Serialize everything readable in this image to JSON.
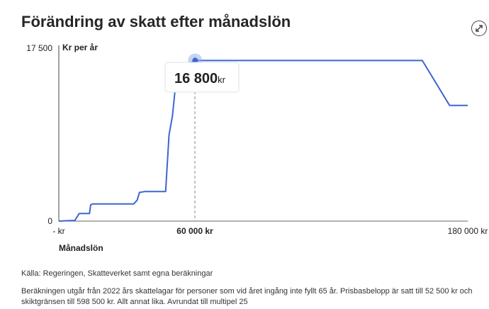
{
  "title": "Förändring av skatt efter månadslön",
  "expand_icon": "expand-arrows-icon",
  "tooltip": {
    "value": "16 800",
    "unit": "kr"
  },
  "source": "Källa: Regeringen, Skatteverket samt egna beräkningar",
  "note": "Beräkningen utgår från 2022 års skattelagar för personer som vid året ingång inte fyllt 65 år. Prisbasbelopp är satt till 52 500 kr och skiktgränsen till 598 500 kr. Allt annat lika. Avrundat till multipel 25",
  "colors": {
    "line": "#3c66d0",
    "highlight": "#8ea9ec"
  },
  "chart_data": {
    "type": "line",
    "ylabel": "Kr per år",
    "xlabel": "Månadslön",
    "ylim": [
      0,
      17500
    ],
    "xlim": [
      0,
      180000
    ],
    "y_tick_labels": [
      "0",
      "17 500"
    ],
    "x_tick_labels": [
      "- kr",
      "60 000 kr",
      "180 000 kr"
    ],
    "x_ticks": [
      0,
      60000,
      180000
    ],
    "y_ticks": [
      0,
      17500
    ],
    "highlight": {
      "x": 60000,
      "y": 16800
    },
    "series": [
      {
        "x": [
          0,
          5000,
          7000,
          9000,
          12000,
          13500,
          14000,
          15000,
          18000,
          23000,
          28000,
          33000,
          34500,
          35500,
          38000,
          42000,
          47000,
          48500,
          50000,
          52000,
          53500,
          55000,
          60000,
          62000,
          70000,
          90000,
          110000,
          130000,
          150000,
          160000,
          172000,
          180000
        ],
        "y": [
          0,
          50,
          50,
          800,
          800,
          800,
          1700,
          1800,
          1800,
          1800,
          1800,
          1800,
          2200,
          3000,
          3100,
          3100,
          3100,
          9000,
          11000,
          15600,
          16000,
          16200,
          16800,
          16800,
          16800,
          16800,
          16800,
          16800,
          16800,
          16800,
          12100,
          12100
        ]
      }
    ]
  }
}
